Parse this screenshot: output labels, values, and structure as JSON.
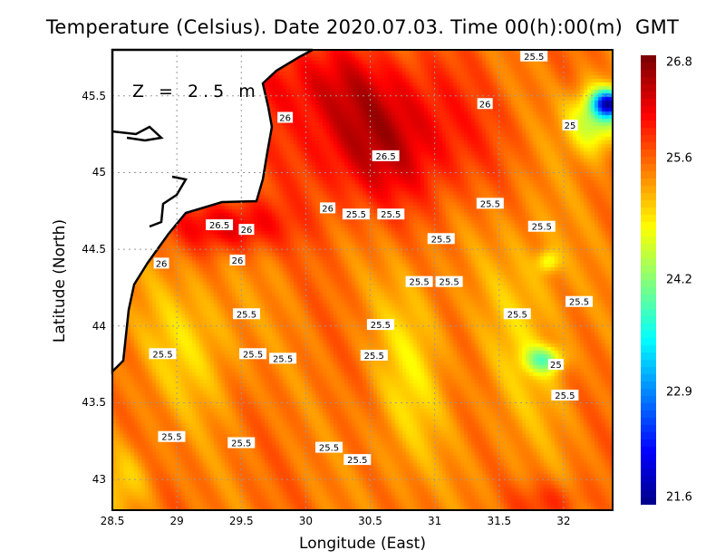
{
  "chart_data": {
    "type": "heatmap",
    "title": "Temperature (Celsius). Date 2020.07.03. Time 00(h):00(m)  GMT",
    "annotation": "Z = 2.5 m",
    "xlabel": "Longitude (East)",
    "ylabel": "Latitude (North)",
    "xlim": [
      28.5,
      32.38
    ],
    "ylim": [
      42.8,
      45.8
    ],
    "xticks": [
      "28.5",
      "29",
      "29.5",
      "30",
      "30.5",
      "31",
      "31.5",
      "32"
    ],
    "yticks": [
      "43",
      "43.5",
      "44",
      "44.5",
      "45",
      "45.5"
    ],
    "grid": true,
    "colorbar": {
      "min": 21.6,
      "max": 26.8,
      "ticks": [
        "21.6",
        "22.9",
        "24.2",
        "25.6",
        "26.8"
      ],
      "colormap": "jet",
      "placement": "right"
    },
    "land_color": "#ffffff",
    "contour_labels": [
      {
        "lon": 31.77,
        "lat": 45.76,
        "text": "25.5"
      },
      {
        "lon": 31.39,
        "lat": 45.45,
        "text": "26"
      },
      {
        "lon": 32.05,
        "lat": 45.31,
        "text": "25"
      },
      {
        "lon": 29.84,
        "lat": 45.36,
        "text": "26"
      },
      {
        "lon": 30.62,
        "lat": 45.11,
        "text": "26.5"
      },
      {
        "lon": 30.17,
        "lat": 44.77,
        "text": "26"
      },
      {
        "lon": 30.39,
        "lat": 44.73,
        "text": "25.5"
      },
      {
        "lon": 30.66,
        "lat": 44.73,
        "text": "25.5"
      },
      {
        "lon": 31.43,
        "lat": 44.8,
        "text": "25.5"
      },
      {
        "lon": 29.33,
        "lat": 44.66,
        "text": "26.5"
      },
      {
        "lon": 29.54,
        "lat": 44.63,
        "text": "26"
      },
      {
        "lon": 31.83,
        "lat": 44.65,
        "text": "25.5"
      },
      {
        "lon": 31.05,
        "lat": 44.57,
        "text": "25.5"
      },
      {
        "lon": 28.88,
        "lat": 44.41,
        "text": "26"
      },
      {
        "lon": 29.47,
        "lat": 44.43,
        "text": "26"
      },
      {
        "lon": 30.88,
        "lat": 44.29,
        "text": "25.5"
      },
      {
        "lon": 31.03,
        "lat": 44.29,
        "text": "25.5"
      },
      {
        "lon": 32.12,
        "lat": 44.16,
        "text": "25.5"
      },
      {
        "lon": 29.54,
        "lat": 44.08,
        "text": "25.5"
      },
      {
        "lon": 31.64,
        "lat": 44.08,
        "text": "25.5"
      },
      {
        "lon": 30.58,
        "lat": 44.01,
        "text": "25.5"
      },
      {
        "lon": 28.89,
        "lat": 43.82,
        "text": "25.5"
      },
      {
        "lon": 29.59,
        "lat": 43.82,
        "text": "25.5"
      },
      {
        "lon": 29.81,
        "lat": 43.79,
        "text": "25.5"
      },
      {
        "lon": 30.53,
        "lat": 43.81,
        "text": "25.5"
      },
      {
        "lon": 31.94,
        "lat": 43.75,
        "text": "25"
      },
      {
        "lon": 32.01,
        "lat": 43.55,
        "text": "25.5"
      },
      {
        "lon": 28.96,
        "lat": 43.28,
        "text": "25.5"
      },
      {
        "lon": 29.5,
        "lat": 43.24,
        "text": "25.5"
      },
      {
        "lon": 30.18,
        "lat": 43.21,
        "text": "25.5"
      },
      {
        "lon": 30.4,
        "lat": 43.13,
        "text": "25.5"
      }
    ]
  }
}
